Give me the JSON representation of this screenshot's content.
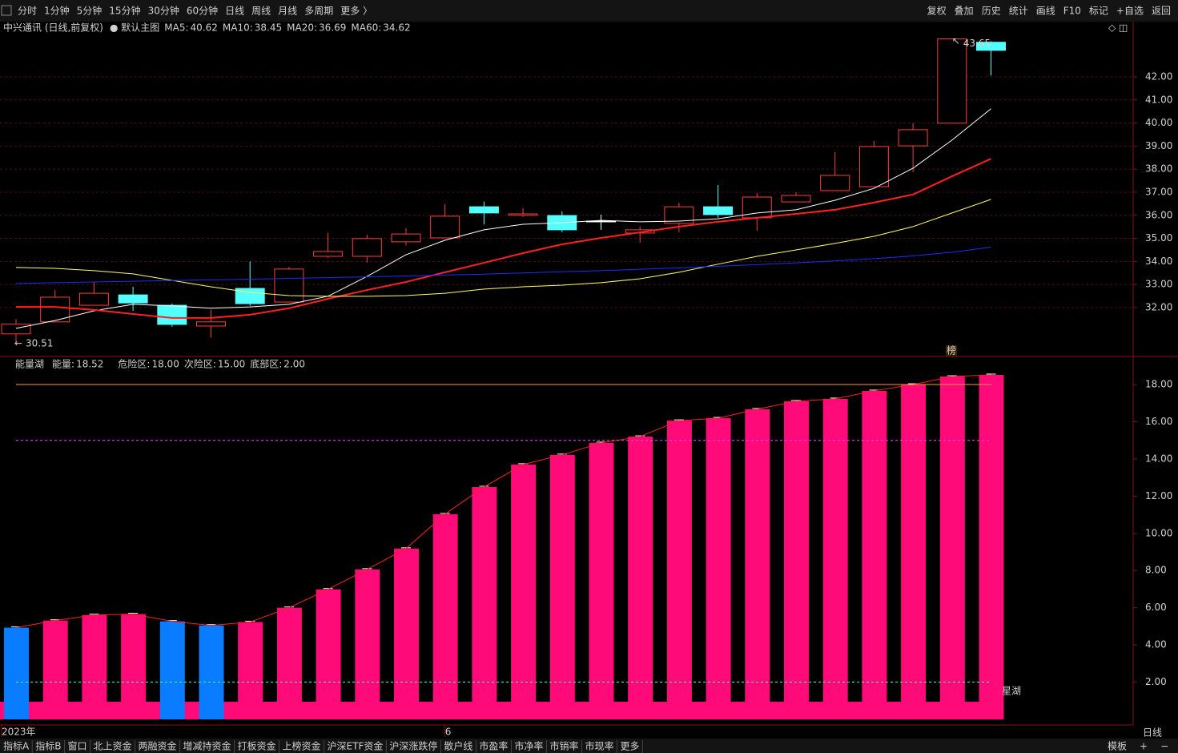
{
  "toolbar": {
    "left": [
      "分时",
      "1分钟",
      "5分钟",
      "15分钟",
      "30分钟",
      "60分钟",
      "日线",
      "周线",
      "月线",
      "多周期",
      "更多 〉"
    ],
    "active_index": 6,
    "right": [
      "复权",
      "叠加",
      "历史",
      "统计",
      "画线",
      "F10",
      "标记",
      "+自选",
      "返回"
    ]
  },
  "header": {
    "stock": "中兴通讯 (日线,前复权)",
    "main_chart": "● 默认主图"
  },
  "chart_data": [
    {
      "type": "candlestick",
      "ylim": [
        29.88,
        44.36
      ],
      "yticks": [
        {
          "value": 32,
          "label": "32.00"
        },
        {
          "value": 33,
          "label": "33.00"
        },
        {
          "value": 34,
          "label": "34.00"
        },
        {
          "value": 35,
          "label": "35.00"
        },
        {
          "value": 36,
          "label": "36.00"
        },
        {
          "value": 37,
          "label": "37.00"
        },
        {
          "value": 38,
          "label": "38.00"
        },
        {
          "value": 39,
          "label": "39.00"
        },
        {
          "value": 40,
          "label": "40.00"
        },
        {
          "value": 41,
          "label": "41.00"
        },
        {
          "value": 42,
          "label": "42.00"
        }
      ],
      "grid": true,
      "up_color": "#ff3c3c",
      "down_color": "#54ffff",
      "flat_color": "#ffffff",
      "open": [
        30.86,
        31.38,
        32.1,
        32.55,
        32.1,
        31.2,
        32.83,
        32.24,
        34.22,
        34.22,
        34.85,
        35.02,
        36.37,
        36.0,
        35.99,
        35.75,
        35.23,
        35.65,
        36.37,
        35.89,
        36.58,
        37.07,
        37.24,
        39.01,
        39.99,
        43.5
      ],
      "high": [
        31.5,
        32.76,
        33.1,
        32.9,
        32.17,
        31.9,
        34.0,
        33.76,
        35.23,
        35.16,
        35.44,
        36.48,
        36.6,
        36.31,
        36.17,
        36.03,
        35.52,
        36.54,
        37.31,
        36.96,
        37.0,
        38.74,
        39.22,
        39.99,
        43.65,
        43.55
      ],
      "low": [
        30.51,
        31.38,
        32.1,
        31.86,
        31.17,
        30.7,
        32.07,
        32.24,
        34.15,
        33.95,
        34.7,
        35.02,
        35.6,
        35.93,
        35.27,
        35.37,
        34.82,
        35.27,
        35.89,
        35.33,
        36.58,
        37.07,
        37.24,
        37.87,
        39.99,
        42.07
      ],
      "close": [
        31.28,
        32.45,
        32.62,
        32.2,
        31.27,
        31.38,
        32.17,
        33.67,
        34.43,
        34.99,
        35.19,
        35.96,
        36.1,
        36.06,
        35.37,
        35.75,
        35.37,
        36.37,
        36.03,
        36.79,
        36.86,
        37.73,
        38.98,
        39.71,
        43.65,
        43.15
      ],
      "series": [
        {
          "name": "MA5",
          "color": "#ffffff",
          "values": [
            31.1,
            31.44,
            31.86,
            32.14,
            32.07,
            31.97,
            32.03,
            32.14,
            32.49,
            33.35,
            34.29,
            34.92,
            35.37,
            35.61,
            35.68,
            35.78,
            35.72,
            35.75,
            35.85,
            36.1,
            36.24,
            36.65,
            37.17,
            38.04,
            39.26,
            40.62
          ]
        },
        {
          "name": "MA10",
          "color": "#ff2020",
          "values": [
            32.03,
            32.03,
            31.9,
            31.72,
            31.55,
            31.55,
            31.69,
            31.97,
            32.38,
            32.76,
            33.11,
            33.53,
            33.94,
            34.36,
            34.74,
            35.02,
            35.26,
            35.51,
            35.72,
            35.89,
            36.06,
            36.24,
            36.55,
            36.9,
            37.69,
            38.45
          ]
        },
        {
          "name": "MA20",
          "color": "#ffff60",
          "values": [
            33.74,
            33.7,
            33.6,
            33.46,
            33.18,
            32.9,
            32.66,
            32.52,
            32.49,
            32.49,
            32.52,
            32.62,
            32.8,
            32.9,
            32.97,
            33.08,
            33.25,
            33.53,
            33.88,
            34.22,
            34.5,
            34.78,
            35.09,
            35.51,
            36.1,
            36.69
          ]
        },
        {
          "name": "MA60",
          "color": "#1c2cff",
          "values": [
            33.04,
            33.08,
            33.11,
            33.14,
            33.17,
            33.2,
            33.23,
            33.26,
            33.3,
            33.33,
            33.37,
            33.41,
            33.45,
            33.5,
            33.55,
            33.6,
            33.66,
            33.72,
            33.79,
            33.86,
            33.94,
            34.02,
            34.12,
            34.24,
            34.4,
            34.62
          ]
        }
      ],
      "legend": [
        {
          "label": "MA5:",
          "value": 40.62,
          "color": "#ffffff"
        },
        {
          "label": "MA10:",
          "value": 38.45,
          "color": "#ff2020"
        },
        {
          "label": "MA20:",
          "value": 36.69,
          "color": "#ffff60"
        },
        {
          "label": "MA60:",
          "value": 34.62,
          "color": "#2040ff"
        }
      ],
      "annotations": [
        {
          "text": "榜"
        }
      ]
    },
    {
      "type": "bar",
      "ylim": [
        0,
        19.38
      ],
      "yticks": [
        {
          "value": 2,
          "label": "2.00"
        },
        {
          "value": 4,
          "label": "4.00"
        },
        {
          "value": 6,
          "label": "6.00"
        },
        {
          "value": 8,
          "label": "8.00"
        },
        {
          "value": 10,
          "label": "10.00"
        },
        {
          "value": 12,
          "label": "12.00"
        },
        {
          "value": 14,
          "label": "14.00"
        },
        {
          "value": 16,
          "label": "16.00"
        },
        {
          "value": 18,
          "label": "18.00"
        }
      ],
      "categories": [
        "2023年",
        null,
        null,
        null,
        null,
        null,
        null,
        null,
        null,
        null,
        null,
        "6",
        null,
        null,
        null,
        null,
        null,
        null,
        null,
        null,
        null,
        null,
        null,
        null,
        null,
        null
      ],
      "values": [
        4.93,
        5.31,
        5.61,
        5.66,
        5.27,
        5.05,
        5.23,
        6.0,
        6.99,
        8.06,
        9.18,
        11.03,
        12.49,
        13.7,
        14.22,
        14.86,
        15.2,
        16.06,
        16.19,
        16.67,
        17.1,
        17.23,
        17.66,
        18.0,
        18.43,
        18.52
      ],
      "colors": [
        "#0a7cff",
        "#ff0a78",
        "#ff0a78",
        "#ff0a78",
        "#0a7cff",
        "#0a7cff",
        "#ff0a78",
        "#ff0a78",
        "#ff0a78",
        "#ff0a78",
        "#ff0a78",
        "#ff0a78",
        "#ff0a78",
        "#ff0a78",
        "#ff0a78",
        "#ff0a78",
        "#ff0a78",
        "#ff0a78",
        "#ff0a78",
        "#ff0a78",
        "#ff0a78",
        "#ff0a78",
        "#ff0a78",
        "#ff0a78",
        "#ff0a78",
        "#ff0a78"
      ],
      "line_color": "#ff2020",
      "reference_lines": [
        {
          "name": "危险区:",
          "value": 18,
          "label": "18.00",
          "color": "#ff9a30",
          "dash": false
        },
        {
          "name": "次险区:",
          "value": 15,
          "label": "15.00",
          "color": "#ff40ff",
          "dash": true
        },
        {
          "name": "底部区:",
          "value": 2,
          "label": "2.00",
          "color": "#40ffd0",
          "dash": true
        }
      ],
      "indicator": "能量湖",
      "energy": {
        "label": "能量:",
        "value": 18.52
      },
      "annotations": [
        {
          "text": "星湖"
        }
      ],
      "period": "日线"
    }
  ],
  "bottom_tabs": {
    "items": [
      "指标A",
      "指标B",
      "窗口",
      "北上资金",
      "两融资金",
      "增减持资金",
      "打板资金",
      "上榜资金",
      "沪深ETF资金",
      "沪深涨跌停",
      "散户线",
      "市盈率",
      "市净率",
      "市销率",
      "市现率",
      "更多"
    ],
    "highlight_index": 15,
    "right": [
      "模板",
      "+",
      "−"
    ]
  }
}
